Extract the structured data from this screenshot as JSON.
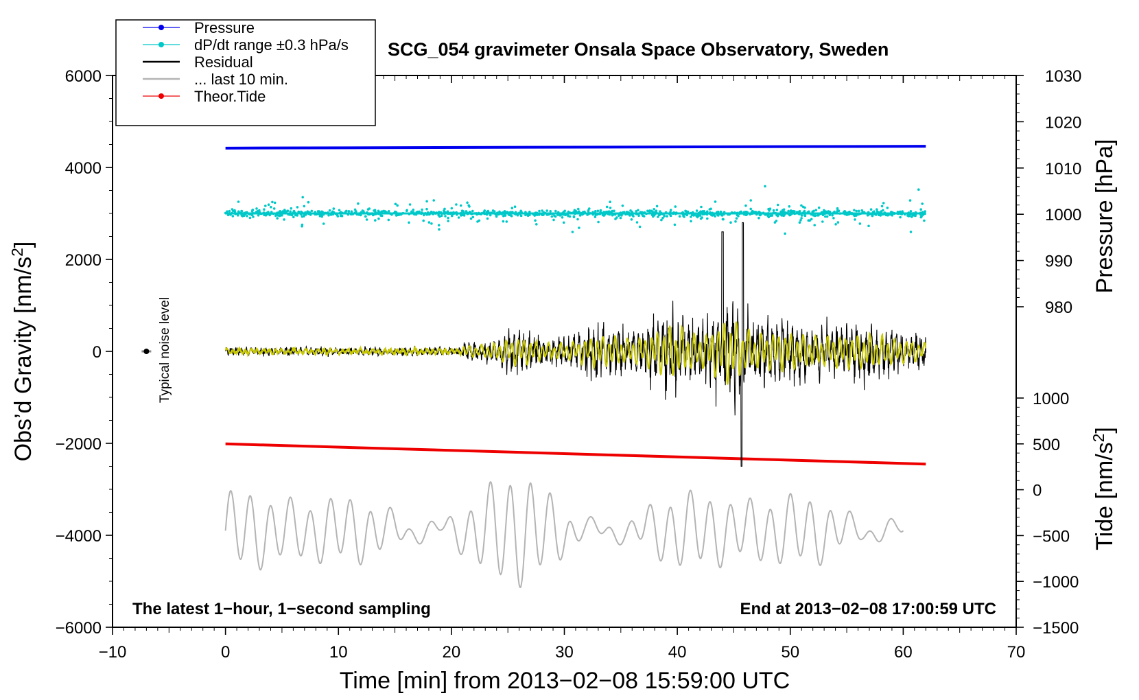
{
  "chart_data": {
    "type": "line",
    "title": "SCG_054 gravimeter Onsala Space Observatory, Sweden",
    "xlabel": "Time [min] from 2013−02−08 15:59:00 UTC",
    "ylabel_left": "Obs’d Gravity [nm/s²]",
    "ylabel_left_main": "Obs’d Gravity [nm/s",
    "ylabel_left_sup": "2",
    "ylabel_left_end": "]",
    "ylabel_pressure": "Pressure [hPa]",
    "ylabel_tide": "Tide [nm/s²]",
    "ylabel_tide_main": "Tide [nm/s",
    "ylabel_tide_sup": "2",
    "ylabel_tide_end": "]",
    "xlim": [
      -10,
      70
    ],
    "ylim": [
      -6000,
      6000
    ],
    "x_ticks": [
      "−10",
      "0",
      "10",
      "20",
      "30",
      "40",
      "50",
      "60",
      "70"
    ],
    "x_tick_values": [
      -10,
      0,
      10,
      20,
      30,
      40,
      50,
      60,
      70
    ],
    "y_ticks_left": [
      "−6000",
      "−4000",
      "−2000",
      "0",
      "2000",
      "4000",
      "6000"
    ],
    "y_tick_values_left": [
      -6000,
      -4000,
      -2000,
      0,
      2000,
      4000,
      6000
    ],
    "pressure_ticks": [
      "980",
      "990",
      "1000",
      "1010",
      "1020",
      "1030"
    ],
    "pressure_tick_values": [
      980,
      990,
      1000,
      1010,
      1020,
      1030
    ],
    "pressure_range_hpa": [
      970,
      1030
    ],
    "tide_ticks": [
      "−1500",
      "−1000",
      "−500",
      "0",
      "500",
      "1000"
    ],
    "tide_tick_values": [
      -1500,
      -1000,
      -500,
      0,
      500,
      1000
    ],
    "tide_range_nms2": [
      -1500,
      3300
    ],
    "legend": [
      {
        "label": "Pressure",
        "color": "#0000ee",
        "marker": true
      },
      {
        "label": "dP/dt range ±0.3 hPa/s",
        "color": "#00c8c8",
        "marker": true
      },
      {
        "label": "Residual",
        "color": "#000000",
        "marker": false
      },
      {
        "label": "... last 10 min.",
        "color": "#b4b4b4",
        "marker": false
      },
      {
        "label": "Theor.Tide",
        "color": "#ee0000",
        "marker": true
      }
    ],
    "series": [
      {
        "name": "Pressure",
        "axis": "pressure",
        "unit": "hPa",
        "x": [
          0,
          62
        ],
        "values": [
          1014.3,
          1014.7
        ]
      },
      {
        "name": "dP/dt range ±0.3 hPa/s",
        "axis": "gravity",
        "x_range": [
          0,
          62
        ],
        "baseline": 3000,
        "spread": [
          2400,
          3700
        ]
      },
      {
        "name": "Residual",
        "axis": "gravity",
        "x_range": [
          0,
          62
        ],
        "baseline": 0,
        "min": -2700,
        "max": 2800
      },
      {
        "name": "Residual filtered",
        "axis": "gravity",
        "x_range": [
          0,
          62
        ],
        "baseline": 0,
        "min": -1000,
        "max": 1000
      },
      {
        "name": "... last 10 min.",
        "axis": "gravity",
        "x_range": [
          0,
          60
        ],
        "baseline": -3900,
        "min": -5000,
        "max": -2400
      },
      {
        "name": "Theor.Tide",
        "axis": "tide",
        "unit": "nm/s²",
        "x": [
          0,
          62
        ],
        "values": [
          500,
          280
        ]
      }
    ],
    "noise": {
      "label": "Typical noise level",
      "x": -7,
      "y": 0
    },
    "annotations": {
      "left": "The latest 1−hour, 1−second sampling",
      "right": "End at 2013−02−08 17:00:59 UTC"
    },
    "colors": {
      "pressure": "#0000ee",
      "dpdt": "#00c8c8",
      "residual": "#000000",
      "filtered": "#c8c800",
      "last10": "#b4b4b4",
      "tide": "#ee0000"
    }
  }
}
